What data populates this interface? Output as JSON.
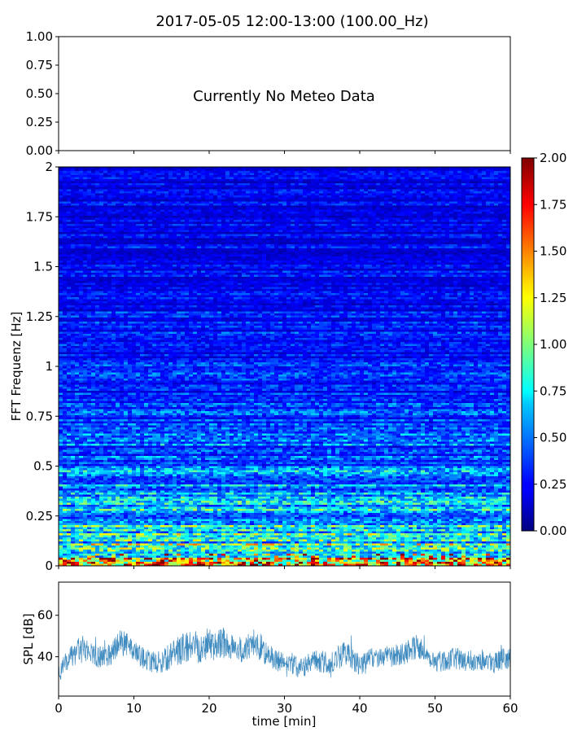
{
  "figure": {
    "title": "2017-05-05 12:00-13:00 (100.00_Hz)"
  },
  "chart_data": [
    {
      "id": "meteo",
      "type": "line",
      "series": [],
      "annotation": "Currently No Meteo Data",
      "xlim": [
        0,
        60
      ],
      "ylim": [
        0,
        1
      ],
      "y_ticks": [
        "0.00",
        "0.25",
        "0.50",
        "0.75",
        "1.00"
      ],
      "y_tick_values": [
        0,
        0.25,
        0.5,
        0.75,
        1.0
      ],
      "x_ticks": [
        0,
        10,
        20,
        30,
        40,
        50,
        60
      ],
      "x_tick_labels_visible": false,
      "grid": false
    },
    {
      "id": "spectrogram",
      "type": "heatmap",
      "ylabel": "FFT Frequenz [Hz]",
      "xlim": [
        0,
        60
      ],
      "ylim": [
        0,
        2
      ],
      "y_ticks": [
        "0",
        "0.25",
        "0.5",
        "0.75",
        "1",
        "1.25",
        "1.5",
        "1.75",
        "2"
      ],
      "y_tick_values": [
        0,
        0.25,
        0.5,
        0.75,
        1,
        1.25,
        1.5,
        1.75,
        2
      ],
      "x_ticks": [
        0,
        10,
        20,
        30,
        40,
        50,
        60
      ],
      "x_tick_labels_visible": false,
      "colormap": "jet",
      "value_range": [
        0,
        2
      ],
      "description_profile": {
        "frequency_hz": [
          0,
          0.05,
          0.1,
          0.25,
          0.5,
          0.75,
          1.0,
          1.5,
          2.0
        ],
        "typical_value": [
          1.2,
          0.9,
          0.75,
          0.6,
          0.45,
          0.35,
          0.28,
          0.22,
          0.2
        ]
      },
      "colorbar": {
        "ticks": [
          "0.00",
          "0.25",
          "0.50",
          "0.75",
          "1.00",
          "1.25",
          "1.50",
          "1.75",
          "2.00"
        ],
        "tick_values": [
          0,
          0.25,
          0.5,
          0.75,
          1,
          1.25,
          1.5,
          1.75,
          2.0
        ]
      }
    },
    {
      "id": "spl",
      "type": "line",
      "ylabel": "SPL [dB]",
      "xlabel": "time [min]",
      "xlim": [
        0,
        60
      ],
      "ylim": [
        21,
        76
      ],
      "y_ticks": [
        40,
        60
      ],
      "x_ticks": [
        0,
        10,
        20,
        30,
        40,
        50,
        60
      ],
      "color": "#1f77b4",
      "series": [
        {
          "x": [
            0,
            1,
            2,
            3,
            4,
            5,
            6,
            7,
            8,
            9,
            10,
            11,
            12,
            13,
            14,
            15,
            16,
            17,
            18,
            19,
            20,
            21,
            22,
            23,
            24,
            25,
            26,
            27,
            28,
            29,
            30,
            31,
            32,
            33,
            34,
            35,
            36,
            37,
            38,
            39,
            40,
            41,
            42,
            43,
            44,
            45,
            46,
            47,
            48,
            49,
            50,
            51,
            52,
            53,
            54,
            55,
            56,
            57,
            58,
            59,
            60
          ],
          "mean": [
            31,
            37,
            41,
            44,
            43,
            40,
            40,
            42,
            47,
            46,
            42,
            40,
            38,
            37,
            38,
            41,
            43,
            45,
            46,
            45,
            46,
            45,
            47,
            45,
            43,
            44,
            47,
            44,
            40,
            38,
            37,
            36,
            35,
            36,
            38,
            38,
            36,
            39,
            43,
            38,
            36,
            38,
            40,
            40,
            40,
            41,
            42,
            45,
            44,
            40,
            38,
            38,
            39,
            39,
            38,
            38,
            39,
            38,
            37,
            39,
            39
          ],
          "spread": [
            8,
            8,
            9,
            10,
            9,
            8,
            8,
            9,
            10,
            9,
            8,
            8,
            8,
            8,
            9,
            10,
            11,
            12,
            13,
            13,
            12,
            11,
            12,
            11,
            10,
            10,
            11,
            10,
            9,
            8,
            8,
            8,
            8,
            8,
            8,
            9,
            8,
            9,
            10,
            9,
            8,
            8,
            8,
            8,
            8,
            8,
            9,
            10,
            9,
            8,
            8,
            8,
            8,
            8,
            8,
            8,
            8,
            8,
            8,
            8,
            8
          ]
        }
      ]
    }
  ]
}
